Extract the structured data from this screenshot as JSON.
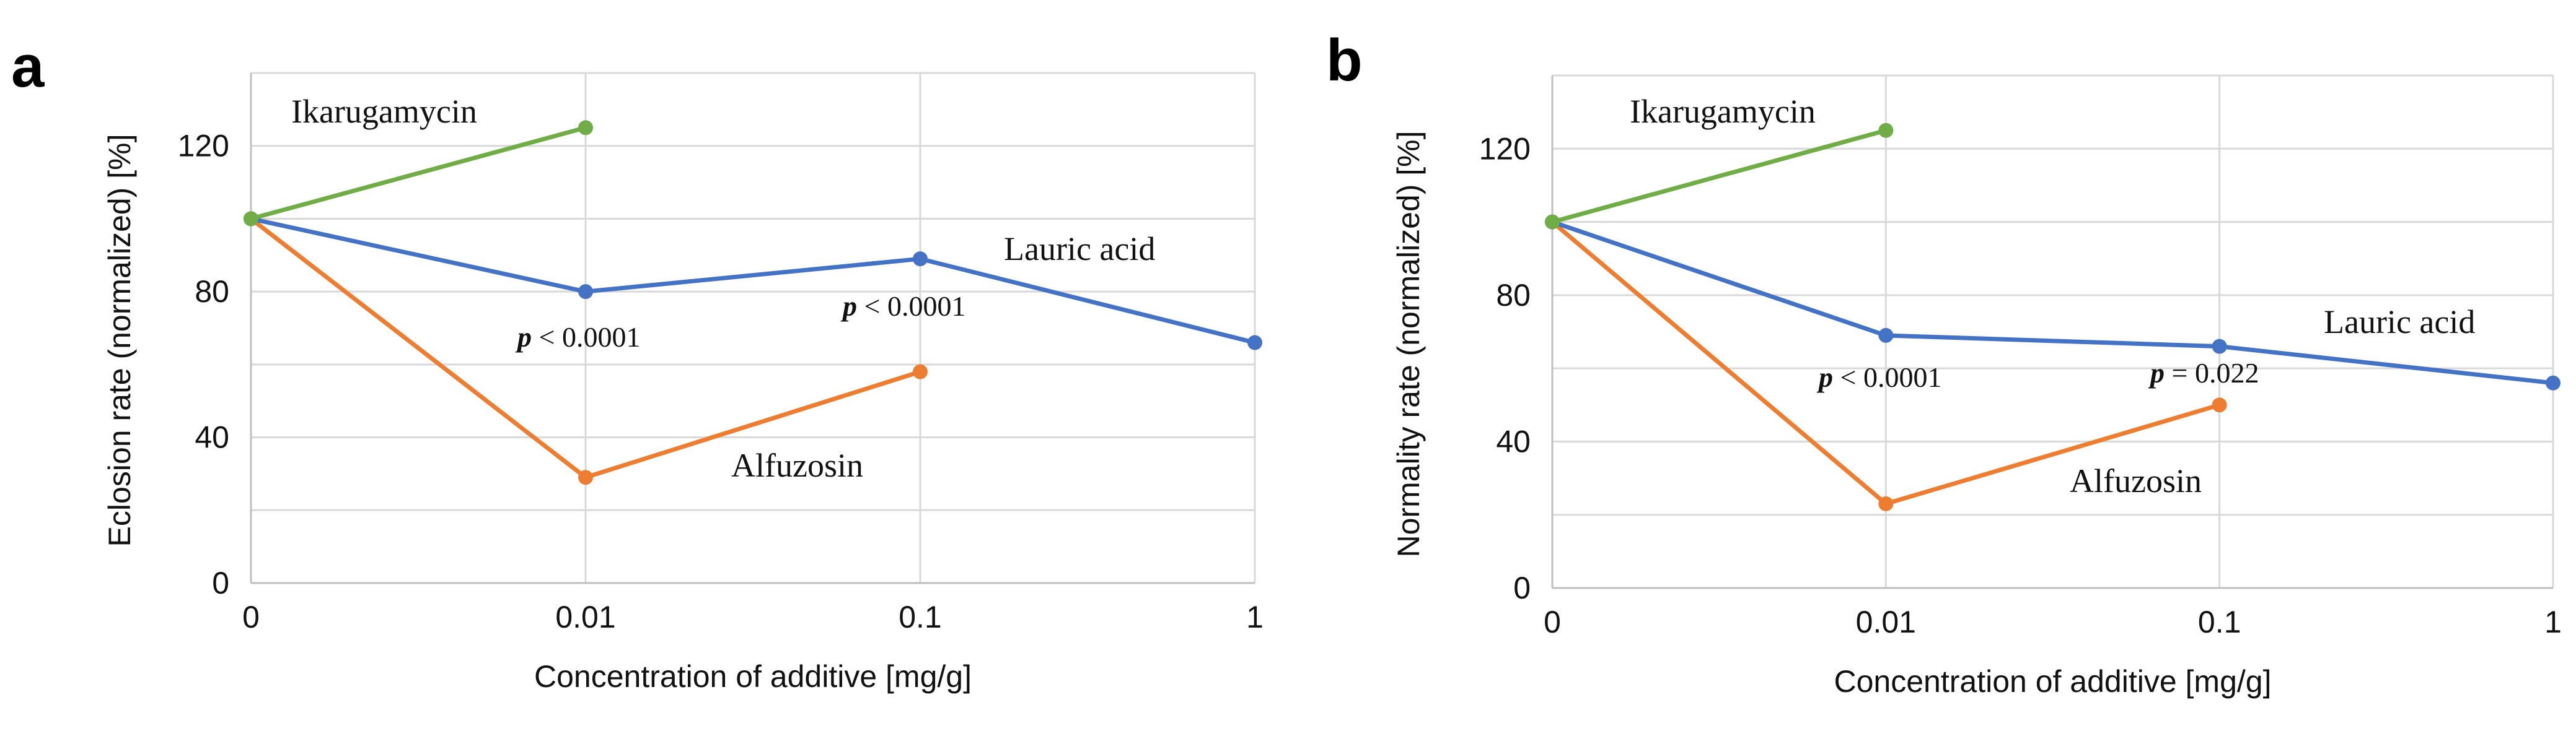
{
  "chart_data": [
    {
      "type": "line",
      "panel": "a",
      "xlabel": "Concentration of additive [mg/g]",
      "ylabel": "Eclosion rate (normalized) [%]",
      "categories": [
        "0",
        "0.01",
        "0.1",
        "1"
      ],
      "yticks": [
        0,
        40,
        80,
        120
      ],
      "ylim": [
        0,
        140
      ],
      "grid": true,
      "series": [
        {
          "name": "Ikarugamycin",
          "color": "#70ad47",
          "x": [
            0,
            0.01
          ],
          "values": [
            100,
            125
          ]
        },
        {
          "name": "Lauric acid",
          "color": "#4472c4",
          "x": [
            0,
            0.01,
            0.1,
            1
          ],
          "values": [
            100,
            80,
            89,
            66
          ]
        },
        {
          "name": "Alfuzosin",
          "color": "#ed7d31",
          "x": [
            0,
            0.01,
            0.1
          ],
          "values": [
            100,
            29,
            58
          ]
        }
      ],
      "annotations": [
        {
          "p": "p",
          "rest": " < 0.0001",
          "at": "0.01"
        },
        {
          "p": "p",
          "rest": " < 0.0001",
          "at": "0.1"
        }
      ]
    },
    {
      "type": "line",
      "panel": "b",
      "xlabel": "Concentration of additive [mg/g]",
      "ylabel": "Normality rate (normalized) [%]",
      "categories": [
        "0",
        "0.01",
        "0.1",
        "1"
      ],
      "yticks": [
        0,
        40,
        80,
        120
      ],
      "ylim": [
        0,
        140
      ],
      "grid": true,
      "series": [
        {
          "name": "Ikarugamycin",
          "color": "#70ad47",
          "x": [
            0,
            0.01
          ],
          "values": [
            100,
            125
          ]
        },
        {
          "name": "Lauric acid",
          "color": "#4472c4",
          "x": [
            0,
            0.01,
            0.1,
            1
          ],
          "values": [
            100,
            69,
            66,
            56
          ]
        },
        {
          "name": "Alfuzosin",
          "color": "#ed7d31",
          "x": [
            0,
            0.01,
            0.1
          ],
          "values": [
            100,
            23,
            50
          ]
        }
      ],
      "annotations": [
        {
          "p": "p",
          "rest": " < 0.0001",
          "at": "0.01"
        },
        {
          "p": "p",
          "rest": " = 0.022",
          "at": "0.1"
        }
      ]
    }
  ]
}
